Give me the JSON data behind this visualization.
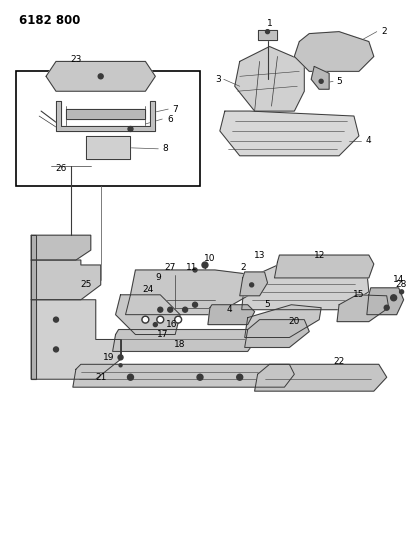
{
  "title": "6182 800",
  "background_color": "#ffffff",
  "figsize": [
    4.08,
    5.33
  ],
  "dpi": 100,
  "line_color": "#3a3a3a",
  "light_gray": "#b8b8b8",
  "mid_gray": "#999999",
  "dark_fill": "#888888"
}
